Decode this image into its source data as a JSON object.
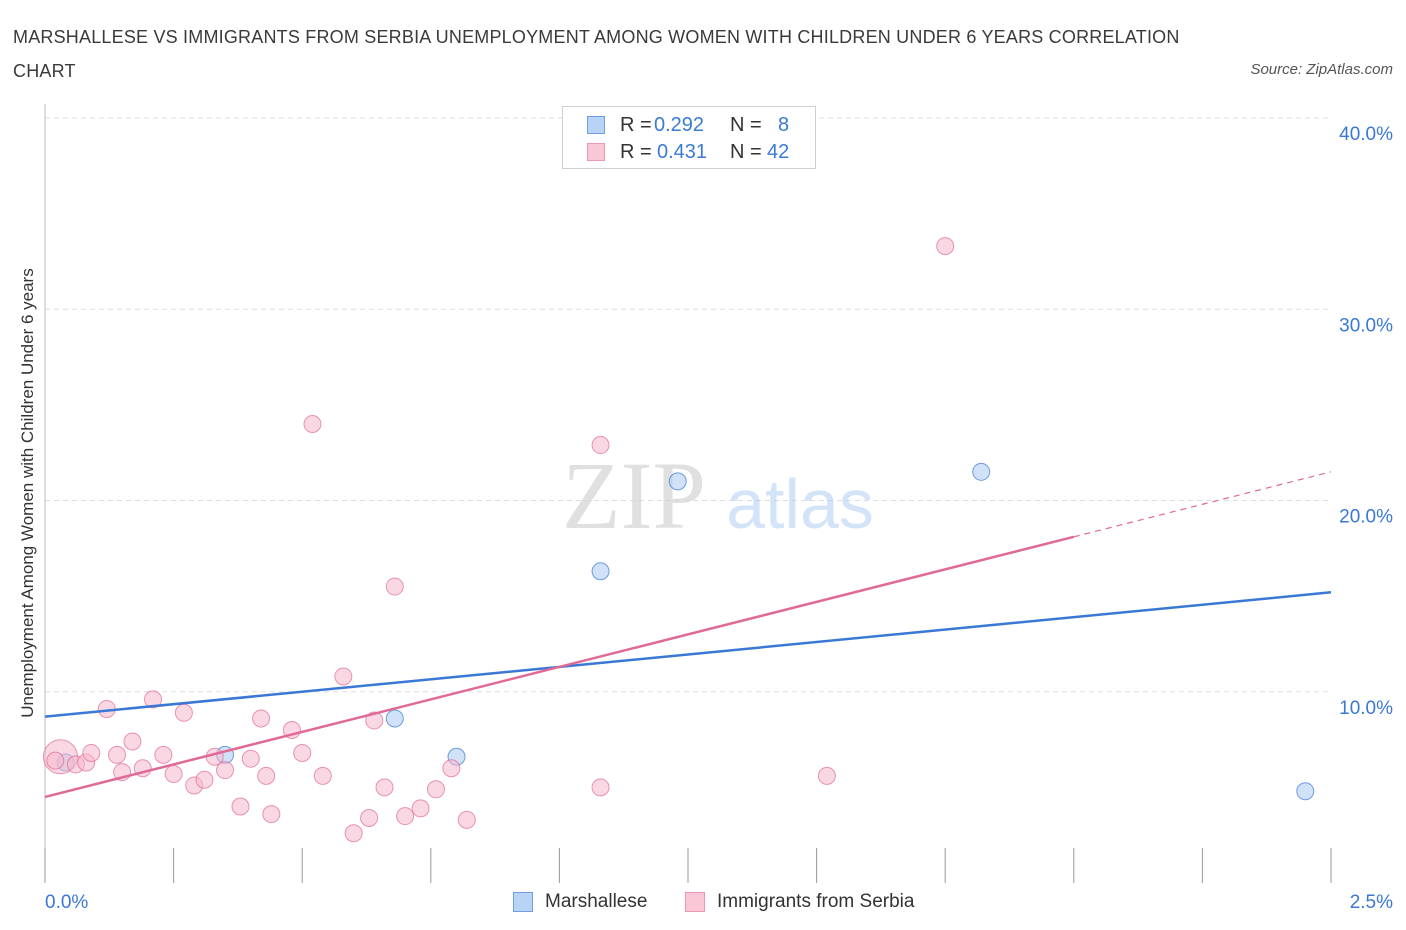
{
  "header": {
    "title": "MARSHALLESE VS IMMIGRANTS FROM SERBIA UNEMPLOYMENT AMONG WOMEN WITH CHILDREN UNDER 6 YEARS CORRELATION CHART",
    "source": "Source: ZipAtlas.com"
  },
  "colors": {
    "blue": "#3a78d6",
    "blue_fill": "#a9c8f3",
    "pink": "#e06a96",
    "pink_fill": "#f5b8cc",
    "grid": "#dddddd",
    "tick_label": "#3a78d6"
  },
  "legend": {
    "r_label": "R =",
    "n_label": "N =",
    "rows": [
      {
        "r": "0.292",
        "n": "8"
      },
      {
        "r": "0.431",
        "n": "42"
      }
    ]
  },
  "watermark": {
    "part1": "ZIP",
    "part2": "atlas"
  },
  "chart_data": {
    "type": "scatter",
    "title": "MARSHALLESE VS IMMIGRANTS FROM SERBIA UNEMPLOYMENT AMONG WOMEN WITH CHILDREN UNDER 6 YEARS CORRELATION CHART",
    "xlabel": "",
    "ylabel": "Unemployment Among Women with Children Under 6 years",
    "xlim": [
      0,
      2.5
    ],
    "ylim": [
      0,
      40
    ],
    "x_tick_labels": [
      "0.0%",
      "2.5%"
    ],
    "y_ticks": [
      10,
      20,
      30,
      40
    ],
    "y_tick_labels": [
      "10.0%",
      "20.0%",
      "30.0%",
      "40.0%"
    ],
    "grid": true,
    "legend_position": "top-center",
    "series": [
      {
        "name": "Marshallese",
        "R": 0.292,
        "N": 8,
        "points": [
          [
            0.04,
            6.3
          ],
          [
            0.35,
            6.7
          ],
          [
            0.68,
            8.6
          ],
          [
            0.8,
            6.6
          ],
          [
            1.08,
            16.3
          ],
          [
            1.23,
            21.0
          ],
          [
            1.82,
            21.5
          ],
          [
            2.45,
            4.8
          ]
        ],
        "trend": {
          "x": [
            0.0,
            2.5
          ],
          "y": [
            8.7,
            15.2
          ]
        }
      },
      {
        "name": "Immigrants from Serbia",
        "R": 0.431,
        "N": 42,
        "points": [
          [
            0.03,
            6.6
          ],
          [
            0.06,
            6.2
          ],
          [
            0.08,
            6.3
          ],
          [
            0.09,
            6.8
          ],
          [
            0.12,
            9.1
          ],
          [
            0.14,
            6.7
          ],
          [
            0.15,
            5.8
          ],
          [
            0.17,
            7.4
          ],
          [
            0.19,
            6.0
          ],
          [
            0.21,
            9.6
          ],
          [
            0.23,
            6.7
          ],
          [
            0.25,
            5.7
          ],
          [
            0.27,
            8.9
          ],
          [
            0.29,
            5.1
          ],
          [
            0.31,
            5.4
          ],
          [
            0.33,
            6.6
          ],
          [
            0.35,
            5.9
          ],
          [
            0.38,
            4.0
          ],
          [
            0.4,
            6.5
          ],
          [
            0.42,
            8.6
          ],
          [
            0.43,
            5.6
          ],
          [
            0.44,
            3.6
          ],
          [
            0.52,
            24.0
          ],
          [
            0.48,
            8.0
          ],
          [
            0.5,
            6.8
          ],
          [
            0.54,
            5.6
          ],
          [
            0.58,
            10.8
          ],
          [
            0.6,
            2.6
          ],
          [
            0.63,
            3.4
          ],
          [
            0.64,
            8.5
          ],
          [
            0.66,
            5.0
          ],
          [
            0.68,
            15.5
          ],
          [
            0.7,
            3.5
          ],
          [
            0.73,
            3.9
          ],
          [
            0.76,
            4.9
          ],
          [
            0.79,
            6.0
          ],
          [
            0.82,
            3.3
          ],
          [
            1.08,
            22.9
          ],
          [
            1.08,
            5.0
          ],
          [
            1.52,
            5.6
          ],
          [
            1.75,
            33.3
          ],
          [
            0.02,
            6.4
          ]
        ],
        "trend": {
          "x": [
            0.0,
            2.0
          ],
          "y": [
            4.5,
            18.1
          ]
        },
        "trend_dashed": {
          "x": [
            2.0,
            2.5
          ],
          "y": [
            18.1,
            21.5
          ]
        }
      }
    ]
  }
}
